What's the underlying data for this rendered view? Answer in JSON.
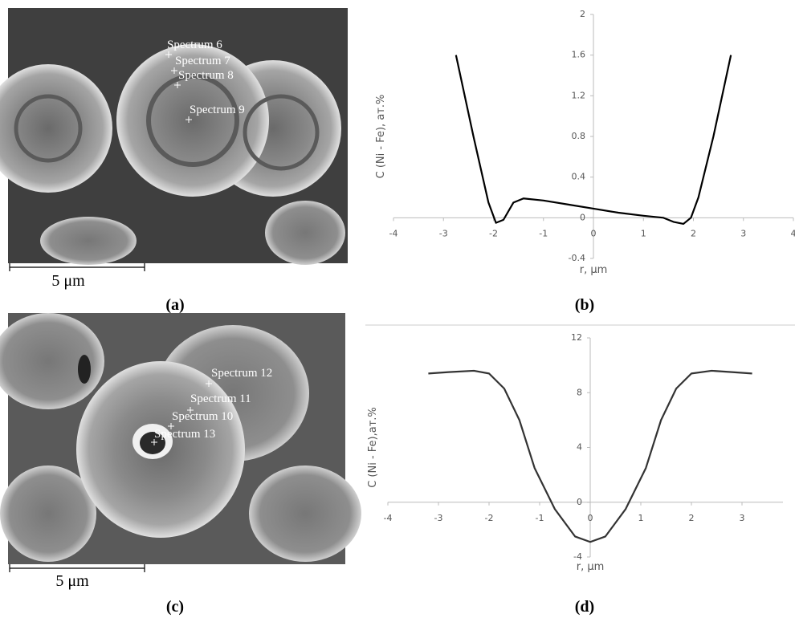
{
  "images": [
    {
      "spectra": [
        "Spectrum 6",
        "Spectrum 7",
        "Spectrum 8",
        "Spectrum 9"
      ],
      "scale_bar": "5 μm"
    },
    {
      "spectra": [
        "Spectrum 12",
        "Spectrum 11",
        "Spectrum 10",
        "Spectrum 13"
      ],
      "scale_bar": "5 μm"
    }
  ],
  "panel_labels": [
    "(a)",
    "(b)",
    "(c)",
    "(d)"
  ],
  "chart_data": [
    {
      "type": "line",
      "y_label": "C (Ni - Fe), ат.%",
      "x_label": "r, μm",
      "color": "#000000",
      "x": [
        -2.75,
        -2.4,
        -2.1,
        -1.95,
        -1.8,
        -1.6,
        -1.4,
        -1.0,
        -0.5,
        0,
        0.5,
        1.0,
        1.4,
        1.6,
        1.8,
        1.95,
        2.1,
        2.4,
        2.75
      ],
      "values": [
        1.6,
        0.8,
        0.15,
        -0.05,
        -0.02,
        0.15,
        0.19,
        0.17,
        0.13,
        0.09,
        0.05,
        0.02,
        0,
        -0.04,
        -0.06,
        0,
        0.2,
        0.8,
        1.6
      ],
      "xlim": [
        -4,
        4
      ],
      "xticks": [
        -4,
        -3,
        -2,
        -1,
        0,
        1,
        2,
        3,
        4
      ],
      "ylim": [
        -0.4,
        2
      ],
      "yticks": [
        -0.4,
        0,
        0.4,
        0.8,
        1.2,
        1.6,
        2
      ]
    },
    {
      "type": "line",
      "y_label": "C (Ni - Fe),ат.%",
      "x_label": "r, μm",
      "color": "#333333",
      "x": [
        -3.2,
        -2.8,
        -2.3,
        -2.0,
        -1.7,
        -1.4,
        -1.1,
        -0.7,
        -0.3,
        0,
        0.3,
        0.7,
        1.1,
        1.4,
        1.7,
        2.0,
        2.4,
        2.8,
        3.2
      ],
      "values": [
        9.4,
        9.5,
        9.6,
        9.4,
        8.3,
        6,
        2.5,
        -0.5,
        -2.5,
        -2.9,
        -2.5,
        -0.5,
        2.5,
        6,
        8.3,
        9.4,
        9.6,
        9.5,
        9.4
      ],
      "xlim": [
        -4,
        4
      ],
      "xticks": [
        -4,
        -3,
        -2,
        -1,
        0,
        1,
        2,
        3
      ],
      "ylim": [
        -4,
        12
      ],
      "yticks": [
        -4,
        0,
        4,
        8,
        12
      ]
    }
  ]
}
